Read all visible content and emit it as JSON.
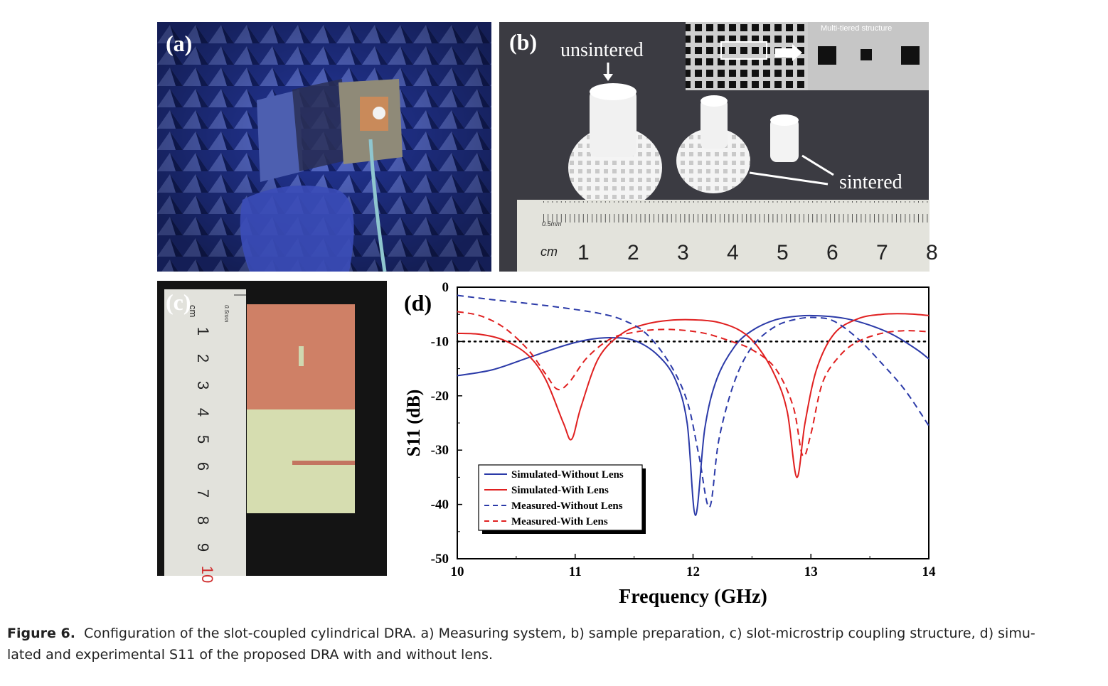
{
  "panels": {
    "a": {
      "label": "(a)"
    },
    "b": {
      "label": "(b)",
      "inset_title": "Multi-tiered structure",
      "annotation_unsintered": "unsintered",
      "annotation_sintered": "sintered",
      "ruler_unit": "cm",
      "ruler_scale": "0.5mm",
      "ruler_numbers": [
        "1",
        "2",
        "3",
        "4",
        "5",
        "6",
        "7",
        "8"
      ]
    },
    "c": {
      "label": "(c)",
      "ruler_unit": "cm",
      "ruler_scale": "0.5mm",
      "ruler_numbers": [
        "1",
        "2",
        "3",
        "4",
        "5",
        "6",
        "7",
        "8",
        "9",
        "10"
      ]
    },
    "d": {
      "label": "(d)"
    }
  },
  "chart_data": {
    "type": "line",
    "xlabel": "Frequency (GHz)",
    "ylabel": "S11 (dB)",
    "xlim": [
      10,
      14
    ],
    "ylim": [
      -50,
      0
    ],
    "xticks": [
      10,
      11,
      12,
      13,
      14
    ],
    "yticks": [
      0,
      -10,
      -20,
      -30,
      -40,
      -50
    ],
    "legend_position": "bottom-left",
    "reference_line": {
      "y": -10,
      "style": "dotted",
      "color": "#000000"
    },
    "series": [
      {
        "name": "Simulated-Without Lens",
        "color": "#2b3aa8",
        "dash": "solid",
        "x": [
          10,
          10.3,
          10.6,
          10.9,
          11.1,
          11.3,
          11.5,
          11.7,
          11.85,
          11.95,
          12.02,
          12.1,
          12.2,
          12.35,
          12.5,
          12.7,
          12.9,
          13.1,
          13.3,
          13.5,
          13.7,
          13.9,
          14
        ],
        "y": [
          -16.3,
          -15.2,
          -13,
          -10.8,
          -9.7,
          -9.3,
          -9.8,
          -12.5,
          -17,
          -25,
          -42,
          -26,
          -17,
          -11,
          -8,
          -6,
          -5.3,
          -5.3,
          -5.8,
          -7,
          -8.8,
          -11.5,
          -13.2
        ]
      },
      {
        "name": "Simulated-With Lens",
        "color": "#e02020",
        "dash": "solid",
        "x": [
          10,
          10.2,
          10.4,
          10.6,
          10.75,
          10.9,
          10.97,
          11.05,
          11.2,
          11.4,
          11.6,
          11.8,
          12,
          12.2,
          12.4,
          12.55,
          12.7,
          12.8,
          12.88,
          12.95,
          13.05,
          13.2,
          13.4,
          13.6,
          13.8,
          14
        ],
        "y": [
          -8.5,
          -8.7,
          -9.8,
          -12.5,
          -17,
          -25,
          -28,
          -22,
          -13,
          -8.5,
          -6.8,
          -6.1,
          -6,
          -6.4,
          -8,
          -11,
          -16.5,
          -23,
          -35,
          -25,
          -15,
          -8.5,
          -5.8,
          -5,
          -4.9,
          -5.2
        ]
      },
      {
        "name": "Measured-Without Lens",
        "color": "#2b3aa8",
        "dash": "dashed",
        "x": [
          10,
          10.3,
          10.6,
          10.9,
          11.2,
          11.4,
          11.6,
          11.8,
          11.95,
          12.05,
          12.14,
          12.22,
          12.35,
          12.5,
          12.7,
          12.9,
          13.05,
          13.2,
          13.4,
          13.6,
          13.8,
          14
        ],
        "y": [
          -1.5,
          -2.3,
          -3,
          -3.8,
          -4.8,
          -6,
          -8.5,
          -14,
          -21,
          -31,
          -40.5,
          -28,
          -17.5,
          -11,
          -7.2,
          -5.8,
          -5.6,
          -6.3,
          -9.5,
          -14,
          -19,
          -25.5
        ]
      },
      {
        "name": "Measured-With Lens",
        "color": "#e02020",
        "dash": "dashed",
        "x": [
          10,
          10.2,
          10.4,
          10.6,
          10.75,
          10.85,
          10.95,
          11.1,
          11.3,
          11.5,
          11.7,
          11.9,
          12.1,
          12.3,
          12.5,
          12.7,
          12.85,
          12.93,
          13.0,
          13.1,
          13.25,
          13.4,
          13.6,
          13.8,
          14
        ],
        "y": [
          -4.5,
          -5.3,
          -7.5,
          -11.5,
          -16,
          -18.8,
          -17.5,
          -13,
          -9.5,
          -8.3,
          -7.8,
          -7.9,
          -8.5,
          -9.8,
          -11.5,
          -15,
          -22,
          -31,
          -27,
          -17.5,
          -12.5,
          -10,
          -8.5,
          -8,
          -8.2
        ]
      }
    ]
  },
  "caption": {
    "prefix": "Figure 6.",
    "text": "Configuration of the slot-coupled cylindrical DRA. a) Measuring system, b) sample preparation, c) slot-microstrip coupling structure, d) simu-",
    "text2": "lated and experimental S11 of the proposed DRA with and without lens."
  }
}
